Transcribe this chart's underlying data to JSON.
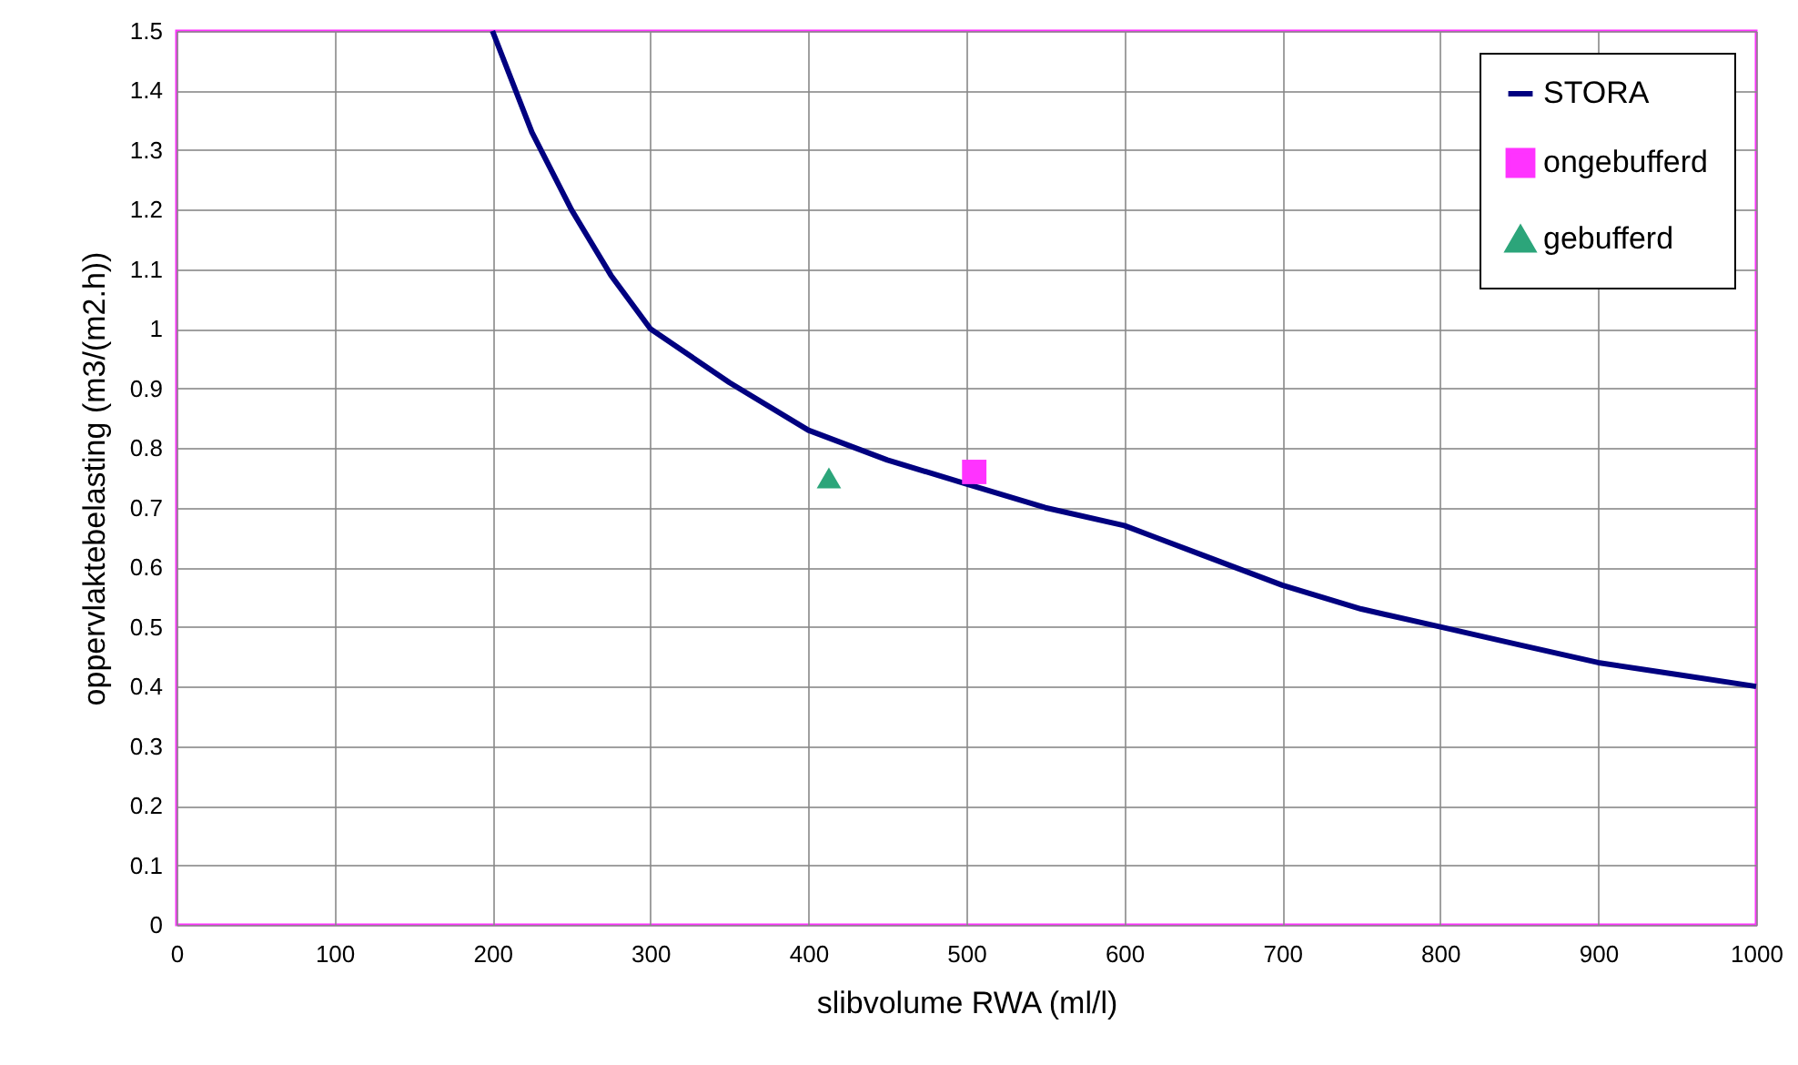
{
  "chart_data": {
    "type": "line",
    "xlabel": "slibvolume RWA (ml/l)",
    "ylabel": "oppervlaktebelasting (m3/(m2.h))",
    "xlim": [
      0,
      1000
    ],
    "xticks": [
      0,
      100,
      200,
      300,
      400,
      500,
      600,
      700,
      800,
      900,
      1000
    ],
    "ylim": [
      0,
      1.5
    ],
    "yticks": [
      0,
      0.1,
      0.2,
      0.3,
      0.4,
      0.5,
      0.6,
      0.7,
      0.8,
      0.9,
      1,
      1.1,
      1.2,
      1.3,
      1.4,
      1.5
    ],
    "grid": true,
    "legend": "top right",
    "series": [
      {
        "name": "STORA",
        "type": "line",
        "marker": "none",
        "color": "#000080",
        "x": [
          200,
          225,
          250,
          275,
          300,
          350,
          400,
          450,
          500,
          550,
          600,
          650,
          700,
          750,
          800,
          850,
          900,
          950,
          1000
        ],
        "values": [
          1.5,
          1.33,
          1.2,
          1.09,
          1.0,
          0.91,
          0.83,
          0.78,
          0.74,
          0.7,
          0.67,
          0.62,
          0.57,
          0.53,
          0.5,
          0.47,
          0.44,
          0.42,
          0.4
        ]
      },
      {
        "name": "ongebufferd",
        "type": "scatter",
        "marker": "square",
        "color": "#ff33ff",
        "x": [
          505
        ],
        "values": [
          0.76
        ]
      },
      {
        "name": "gebufferd",
        "type": "scatter",
        "marker": "triangle",
        "color": "#2ca57a",
        "x": [
          413
        ],
        "values": [
          0.75
        ]
      }
    ]
  }
}
